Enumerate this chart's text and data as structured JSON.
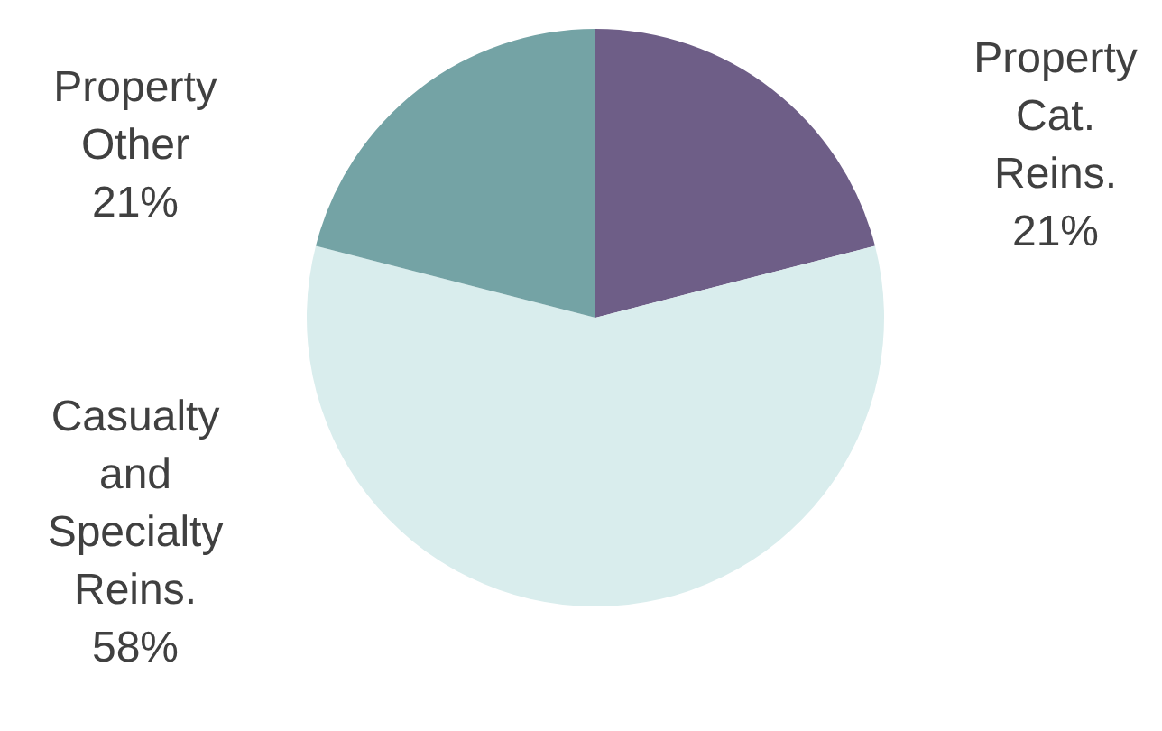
{
  "chart_data": {
    "type": "pie",
    "categories": [
      "Property Cat. Reins.",
      "Casualty and Specialty Reins.",
      "Property Other"
    ],
    "values": [
      21,
      58,
      21
    ],
    "value_labels": [
      "21%",
      "58%",
      "21%"
    ],
    "colors": [
      "#6e5e87",
      "#d9eded",
      "#74a3a5"
    ],
    "legend": false
  }
}
